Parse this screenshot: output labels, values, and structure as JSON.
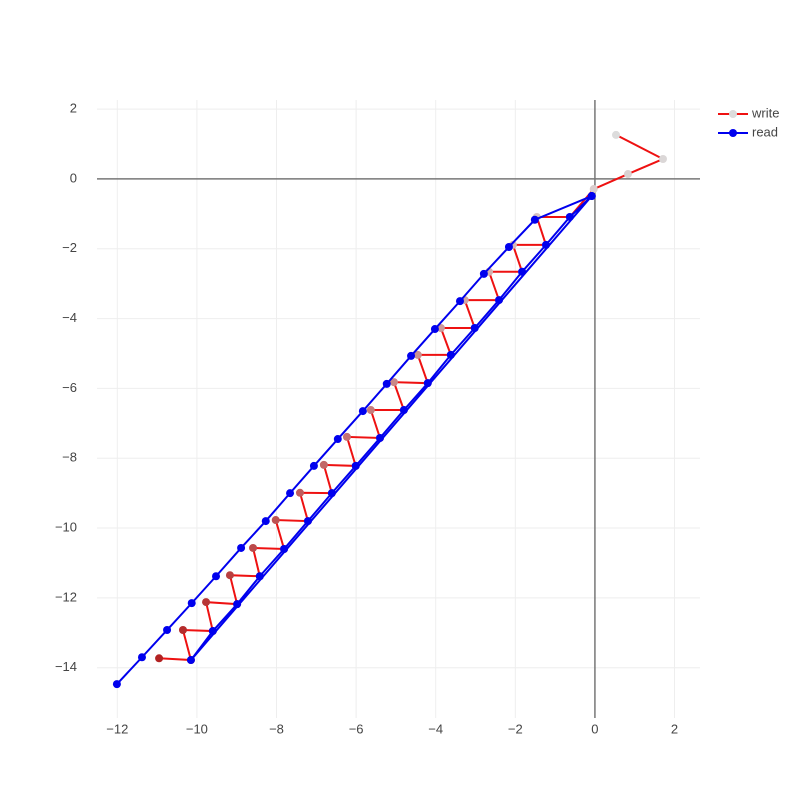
{
  "chart_data": {
    "type": "scatter",
    "mode": "lines+markers",
    "xlim": [
      -12.51,
      2.64
    ],
    "ylim": [
      -15.44,
      2.26
    ],
    "xticks": [
      {
        "value": -12,
        "label": "−12"
      },
      {
        "value": -10,
        "label": "−10"
      },
      {
        "value": -8,
        "label": "−8"
      },
      {
        "value": -6,
        "label": "−6"
      },
      {
        "value": -4,
        "label": "−4"
      },
      {
        "value": -2,
        "label": "−2"
      },
      0,
      2
    ],
    "yticks": [
      2,
      0,
      {
        "value": -2,
        "label": "−2"
      },
      {
        "value": -4,
        "label": "−4"
      },
      {
        "value": -6,
        "label": "−6"
      },
      {
        "value": -8,
        "label": "−8"
      },
      {
        "value": -10,
        "label": "−10"
      },
      {
        "value": -12,
        "label": "−12"
      },
      {
        "value": -14,
        "label": "−14"
      }
    ],
    "grid": true,
    "zeroline": true,
    "legend": "top-right",
    "series": [
      {
        "name": "write",
        "color": "#ee1111",
        "marker_color_range": [
          "#dcdcdc",
          "#b22222"
        ],
        "x": [
          0.53,
          1.71,
          0.83,
          -0.03,
          -0.63,
          -1.46,
          -1.23,
          -2.06,
          -1.83,
          -2.66,
          -2.41,
          -3.27,
          -3.02,
          -3.87,
          -3.62,
          -4.45,
          -4.2,
          -5.05,
          -4.8,
          -5.63,
          -5.4,
          -6.23,
          -6.01,
          -6.81,
          -6.61,
          -7.41,
          -7.21,
          -8.02,
          -7.81,
          -8.59,
          -8.42,
          -9.17,
          -8.99,
          -9.77,
          -9.6,
          -10.35,
          -10.15,
          -10.95
        ],
        "values": [
          1.26,
          0.57,
          0.14,
          -0.29,
          -1.09,
          -1.09,
          -1.89,
          -1.89,
          -2.66,
          -2.66,
          -3.47,
          -3.47,
          -4.27,
          -4.27,
          -5.04,
          -5.04,
          -5.85,
          -5.82,
          -6.62,
          -6.62,
          -7.42,
          -7.39,
          -8.22,
          -8.19,
          -9.0,
          -8.99,
          -9.8,
          -9.77,
          -10.6,
          -10.57,
          -11.38,
          -11.35,
          -12.18,
          -12.12,
          -12.95,
          -12.92,
          -13.78,
          -13.73
        ]
      },
      {
        "name": "read",
        "color": "#0000ee",
        "x": [
          -12.01,
          -11.38,
          -10.75,
          -10.13,
          -9.52,
          -8.89,
          -8.27,
          -7.66,
          -7.06,
          -6.46,
          -5.83,
          -5.23,
          -4.62,
          -4.02,
          -3.39,
          -2.79,
          -2.16,
          -1.51,
          -0.08,
          -0.63,
          -1.23,
          -1.83,
          -2.41,
          -3.02,
          -3.62,
          -4.2,
          -4.8,
          -5.4,
          -6.01,
          -6.61,
          -7.21,
          -7.81,
          -8.42,
          -8.99,
          -9.6,
          -10.15,
          -0.08
        ],
        "values": [
          -14.47,
          -13.7,
          -12.92,
          -12.15,
          -11.38,
          -10.57,
          -9.8,
          -9.0,
          -8.22,
          -7.45,
          -6.65,
          -5.87,
          -5.07,
          -4.3,
          -3.5,
          -2.72,
          -1.95,
          -1.17,
          -0.49,
          -1.09,
          -1.89,
          -2.66,
          -3.47,
          -4.27,
          -5.04,
          -5.85,
          -6.62,
          -7.42,
          -8.22,
          -9.0,
          -9.8,
          -10.6,
          -11.38,
          -12.18,
          -12.95,
          -13.78,
          -0.49
        ]
      }
    ]
  }
}
